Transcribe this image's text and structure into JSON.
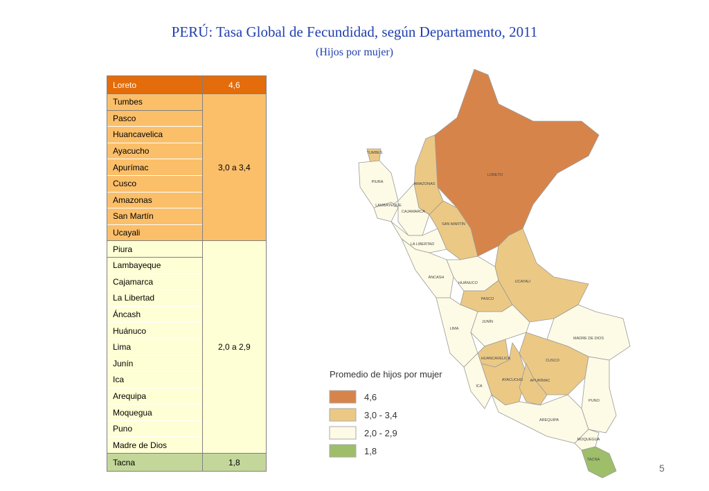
{
  "header": {
    "title": "PERÚ: Tasa Global de Fecundidad, según Departamento, 2011",
    "subtitle": "(Hijos por mujer)"
  },
  "table": {
    "groups": [
      {
        "departments": [
          "Loreto"
        ],
        "value": "4,6"
      },
      {
        "departments": [
          "Tumbes",
          "Pasco",
          "Huancavelica",
          "Ayacucho",
          "Apurímac",
          "Cusco",
          "Amazonas",
          "San Martín",
          "Ucayali"
        ],
        "value": "3,0  a 3,4"
      },
      {
        "departments": [
          "Piura",
          "Lambayeque",
          "Cajamarca",
          "La Libertad",
          "Áncash",
          "Huánuco",
          "Lima",
          "Junín",
          "Ica",
          "Arequipa",
          "Moquegua",
          "Puno",
          "Madre de Dios"
        ],
        "value": "2,0 a 2,9"
      },
      {
        "departments": [
          "Tacna"
        ],
        "value": "1,8"
      }
    ]
  },
  "map": {
    "regions": [
      "LORETO",
      "AMAZONAS",
      "TUMBES",
      "PIURA",
      "LAMBAYEQUE",
      "CAJAMARCA",
      "SAN MARTÍN",
      "LA LIBERTAD",
      "ÁNCASH",
      "HUÁNUCO",
      "UCAYALI",
      "PASCO",
      "LIMA",
      "JUNÍN",
      "MADRE DE DIOS",
      "CUSCO",
      "HUANCAVELICA",
      "AYACUCHO",
      "APURÍMAC",
      "ICA",
      "PUNO",
      "AREQUIPA",
      "MOQUEGUA",
      "TACNA"
    ]
  },
  "legend": {
    "title": "Promedio de hijos por mujer",
    "items": [
      "4,6",
      "3,0 - 3,4",
      "2,0 - 2,9",
      "1,8"
    ]
  },
  "page_number": "5"
}
